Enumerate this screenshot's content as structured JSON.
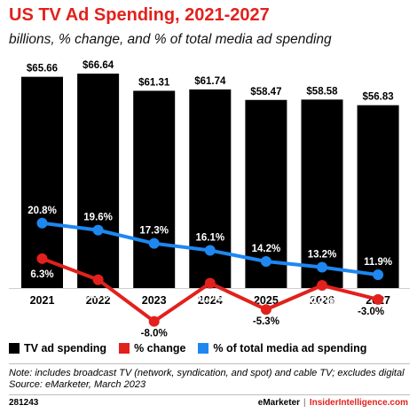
{
  "title": "US TV Ad Spending, 2021-2027",
  "subtitle": "billions, % change, and % of total media ad spending",
  "colors": {
    "bar": "#000000",
    "change": "#e2211c",
    "share": "#1e87f0",
    "title": "#e2211c"
  },
  "chart_data": {
    "type": "bar",
    "categories": [
      "2021",
      "2022",
      "2023",
      "2024",
      "2025",
      "2026",
      "2027"
    ],
    "series": [
      {
        "name": "TV ad spending",
        "type": "bar",
        "values": [
          65.66,
          66.64,
          61.31,
          61.74,
          58.47,
          58.58,
          56.83
        ],
        "labels": [
          "$65.66",
          "$66.64",
          "$61.31",
          "$61.74",
          "$58.47",
          "$58.58",
          "$56.83"
        ]
      },
      {
        "name": "% change",
        "type": "line",
        "values": [
          6.3,
          1.5,
          -8.0,
          0.7,
          -5.3,
          0.2,
          -3.0
        ],
        "labels": [
          "6.3%",
          "1.5%",
          "-8.0%",
          "0.7%",
          "-5.3%",
          "0.2%",
          "-3.0%"
        ]
      },
      {
        "name": "% of total media ad spending",
        "type": "line",
        "values": [
          20.8,
          19.6,
          17.3,
          16.1,
          14.2,
          13.2,
          11.9
        ],
        "labels": [
          "20.8%",
          "19.6%",
          "17.3%",
          "16.1%",
          "14.2%",
          "13.2%",
          "11.9%"
        ]
      }
    ],
    "legend": "bottom-left",
    "grid": false
  },
  "note": "Note: includes broadcast TV (network, syndication, and spot) and cable TV; excludes digital",
  "source": "Source: eMarketer, March 2023",
  "footer": {
    "id": "281243",
    "brand_left": "eMarketer",
    "separator": "|",
    "brand_right": "InsiderIntelligence.com"
  }
}
